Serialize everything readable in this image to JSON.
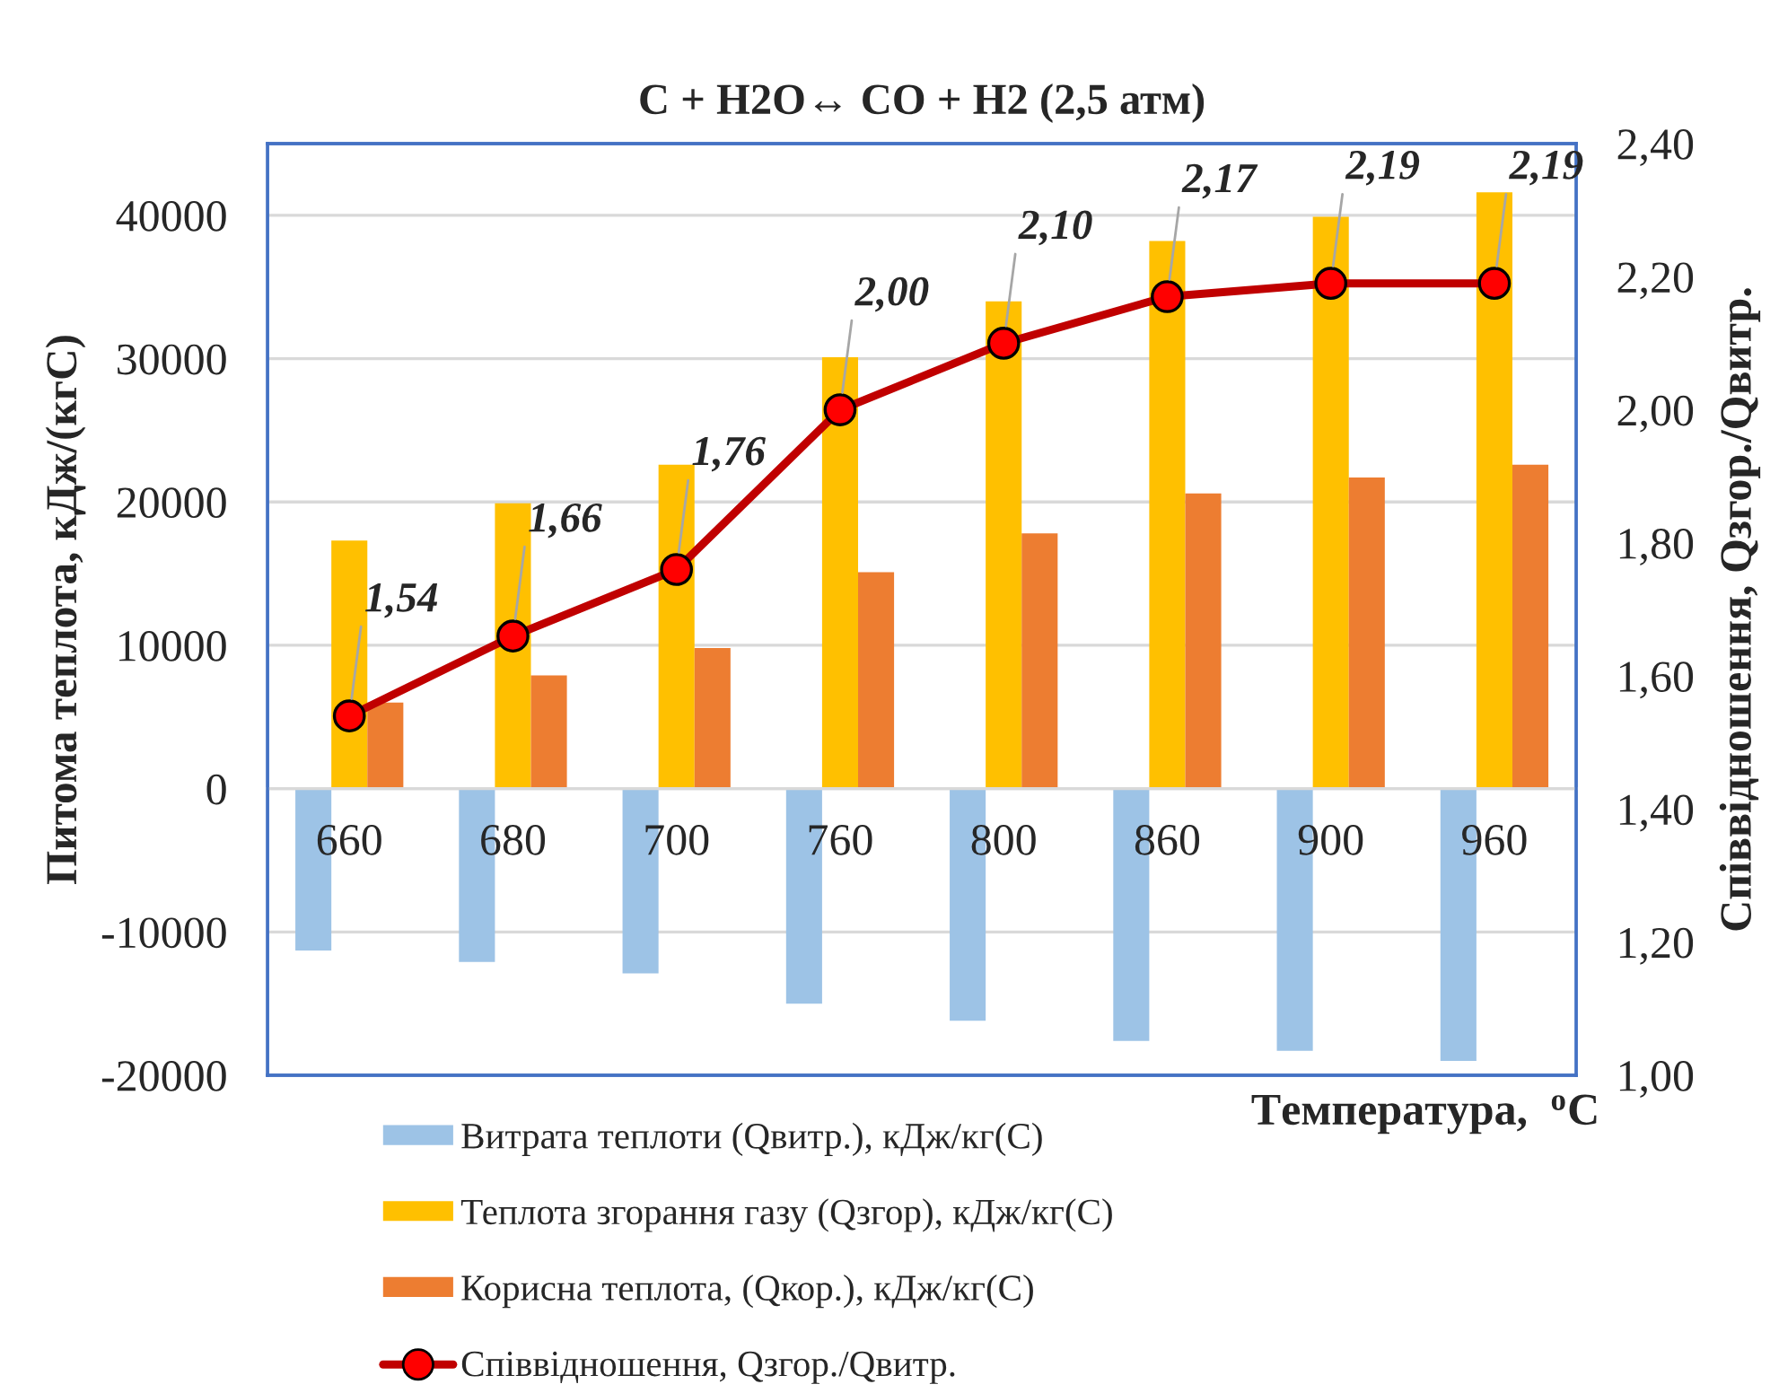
{
  "chart_data": {
    "type": "bar",
    "title": "C + H2O↔ CO + H2 (2,5 атм)",
    "xlabel": "Температура,  $^{o}$C",
    "ylabel": "Питома теплота, кДж/(кгС)",
    "y2label": "Співвідношення, Qзгор./Qвитр.",
    "categories": [
      "660",
      "680",
      "700",
      "760",
      "800",
      "860",
      "900",
      "960"
    ],
    "series": [
      {
        "name": "Витрата теплоти (Qвитр.), кДж/кг(С)",
        "color": "#9dc3e6",
        "values": [
          -11300,
          -12100,
          -12900,
          -15000,
          -16200,
          -17600,
          -18300,
          -19000
        ]
      },
      {
        "name": "Теплота згорання газу (Qзгор), кДж/кг(С)",
        "color": "#ffc000",
        "values": [
          17300,
          19900,
          22600,
          30100,
          34000,
          38200,
          39900,
          41600
        ]
      },
      {
        "name": "Корисна теплота, (Qкор.), кДж/кг(С)",
        "color": "#ed7d31",
        "values": [
          6000,
          7900,
          9800,
          15100,
          17800,
          20600,
          21700,
          22600
        ]
      },
      {
        "name": "Співвідношення, Qзгор./Qвитр.",
        "type": "line",
        "axis": "y2",
        "color": "#c00000",
        "marker": "circle",
        "values": [
          1.54,
          1.66,
          1.76,
          2.0,
          2.1,
          2.17,
          2.19,
          2.19
        ],
        "value_labels": [
          "1,54",
          "1,66",
          "1,76",
          "2,00",
          "2,10",
          "2,17",
          "2,19",
          "2,19"
        ]
      }
    ],
    "ylim": [
      -20000,
      45000
    ],
    "yticks": [
      -20000,
      -10000,
      0,
      10000,
      20000,
      30000,
      40000
    ],
    "y2lim": [
      1.0,
      2.4
    ],
    "y2ticks": [
      {
        "value": 1.0,
        "label": "1,00"
      },
      {
        "value": 1.2,
        "label": "1,20"
      },
      {
        "value": 1.4,
        "label": "1,40"
      },
      {
        "value": 1.6,
        "label": "1,60"
      },
      {
        "value": 1.8,
        "label": "1,80"
      },
      {
        "value": 2.0,
        "label": "2,00"
      },
      {
        "value": 2.2,
        "label": "2,20"
      },
      {
        "value": 2.4,
        "label": "2,40"
      }
    ],
    "grid": "y",
    "legend": "bottom left"
  }
}
